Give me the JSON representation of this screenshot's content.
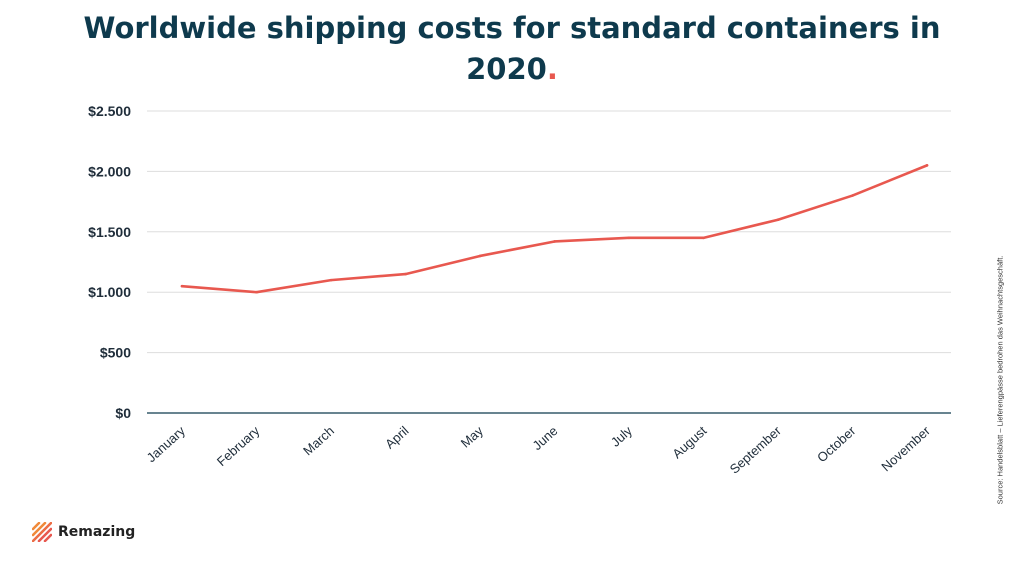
{
  "title": "Worldwide shipping costs for standard containers in 2020",
  "title_dot": ".",
  "source": "Source: Handelsblatt – Lieferengpässe bedrohen das Weihnachtsgeschäft.",
  "brand": {
    "name": "Remazing",
    "icon": "stripes-logo-icon"
  },
  "colors": {
    "line": "#e8584f",
    "title": "#0e3a4d",
    "axis": "#0e3a4d",
    "grid": "#dddddd",
    "logo_orange": "#f0893a",
    "logo_red": "#e8584f"
  },
  "chart_data": {
    "type": "line",
    "categories": [
      "January",
      "February",
      "March",
      "April",
      "May",
      "June",
      "July",
      "August",
      "September",
      "October",
      "November"
    ],
    "series": [
      {
        "values": [
          1050,
          1000,
          1100,
          1150,
          1300,
          1420,
          1450,
          1450,
          1600,
          1800,
          2050
        ]
      }
    ],
    "ylim": [
      0,
      2500
    ],
    "yticks": [
      0,
      500,
      1000,
      1500,
      2000,
      2500
    ],
    "ytick_labels": [
      "$0",
      "$500",
      "$1.000",
      "$1.500",
      "$2.000",
      "$2.500"
    ],
    "grid": true,
    "legend": "none"
  }
}
